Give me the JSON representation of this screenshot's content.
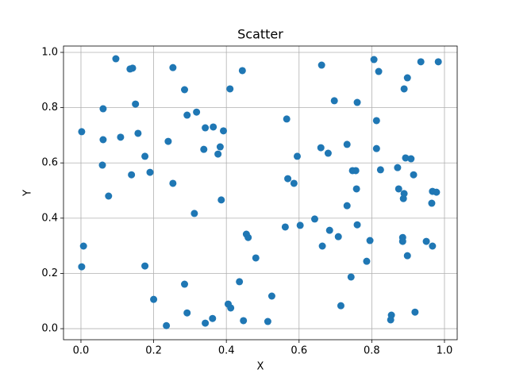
{
  "chart_data": {
    "type": "scatter",
    "title": "Scatter",
    "x_label": "X",
    "y_label": "Y",
    "color": "#1f77b4",
    "grid": true,
    "xlim": [
      -0.048,
      1.035
    ],
    "ylim": [
      -0.04,
      1.023
    ],
    "xticks": [
      {
        "value": 0,
        "label": "0.0"
      },
      {
        "value": 0.2,
        "label": "0.2"
      },
      {
        "value": 0.4,
        "label": "0.4"
      },
      {
        "value": 0.6,
        "label": "0.6"
      },
      {
        "value": 0.8,
        "label": "0.8"
      },
      {
        "value": 1,
        "label": "1.0"
      }
    ],
    "yticks": [
      {
        "value": 0,
        "label": "0.0"
      },
      {
        "value": 0.2,
        "label": "0.2"
      },
      {
        "value": 0.4,
        "label": "0.4"
      },
      {
        "value": 0.6,
        "label": "0.6"
      },
      {
        "value": 0.8,
        "label": "0.8"
      },
      {
        "value": 1,
        "label": "1.0"
      }
    ],
    "x": [
      0.002,
      0.007,
      0.002,
      0.061,
      0.061,
      0.059,
      0.076,
      0.096,
      0.109,
      0.135,
      0.142,
      0.15,
      0.157,
      0.139,
      0.176,
      0.19,
      0.176,
      0.2,
      0.235,
      0.24,
      0.253,
      0.253,
      0.285,
      0.292,
      0.318,
      0.342,
      0.338,
      0.364,
      0.383,
      0.377,
      0.392,
      0.386,
      0.312,
      0.285,
      0.292,
      0.342,
      0.362,
      0.41,
      0.444,
      0.405,
      0.412,
      0.436,
      0.447,
      0.455,
      0.46,
      0.481,
      0.514,
      0.525,
      0.566,
      0.569,
      0.586,
      0.595,
      0.562,
      0.603,
      0.643,
      0.662,
      0.66,
      0.68,
      0.697,
      0.732,
      0.664,
      0.684,
      0.708,
      0.747,
      0.756,
      0.758,
      0.732,
      0.76,
      0.76,
      0.743,
      0.715,
      0.806,
      0.819,
      0.813,
      0.813,
      0.824,
      0.786,
      0.795,
      0.854,
      0.852,
      0.898,
      0.889,
      0.871,
      0.893,
      0.908,
      0.915,
      0.874,
      0.889,
      0.887,
      0.885,
      0.885,
      0.898,
      0.919,
      0.935,
      0.983,
      0.95,
      0.967,
      0.967,
      0.978,
      0.965
    ],
    "values": [
      0.713,
      0.299,
      0.224,
      0.796,
      0.684,
      0.592,
      0.48,
      0.977,
      0.693,
      0.94,
      0.943,
      0.813,
      0.707,
      0.557,
      0.624,
      0.566,
      0.227,
      0.106,
      0.011,
      0.678,
      0.945,
      0.526,
      0.865,
      0.773,
      0.784,
      0.727,
      0.649,
      0.73,
      0.658,
      0.632,
      0.716,
      0.466,
      0.417,
      0.161,
      0.057,
      0.02,
      0.037,
      0.868,
      0.934,
      0.089,
      0.075,
      0.17,
      0.029,
      0.342,
      0.33,
      0.256,
      0.026,
      0.118,
      0.759,
      0.543,
      0.526,
      0.624,
      0.368,
      0.374,
      0.397,
      0.954,
      0.655,
      0.635,
      0.825,
      0.667,
      0.299,
      0.356,
      0.333,
      0.572,
      0.572,
      0.506,
      0.445,
      0.376,
      0.819,
      0.187,
      0.083,
      0.974,
      0.931,
      0.753,
      0.652,
      0.575,
      0.244,
      0.319,
      0.049,
      0.032,
      0.908,
      0.868,
      0.583,
      0.618,
      0.615,
      0.557,
      0.506,
      0.489,
      0.471,
      0.33,
      0.316,
      0.264,
      0.06,
      0.966,
      0.966,
      0.316,
      0.299,
      0.497,
      0.494,
      0.454
    ]
  }
}
